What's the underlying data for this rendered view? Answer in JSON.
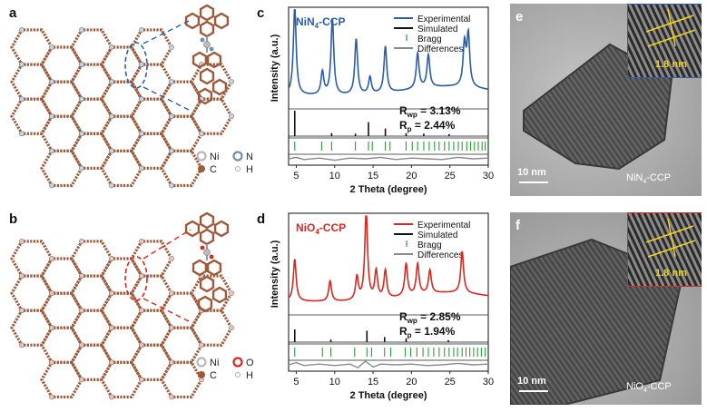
{
  "colors": {
    "ni4_title": "#2f5fa6",
    "ni4_exp": "#2a5ca8",
    "no4_title": "#d8281f",
    "no4_exp": "#d8281f",
    "simulated": "#111111",
    "bragg": "#2e9a3a",
    "difference": "#8a8a8a",
    "atom_c": "#9c5a3a",
    "atom_ni": "#b8b8b8",
    "atom_n": "#6f8fb0",
    "atom_o": "#d8281f",
    "scale_text": "#ffffff",
    "lattice_line": "#f2d21b"
  },
  "panels": {
    "a": {
      "label": "a",
      "legend": [
        {
          "symbol": "Ni",
          "color": "#b8b8b8",
          "style": "ring"
        },
        {
          "symbol": "N",
          "color": "#6f8fb0",
          "style": "ring"
        },
        {
          "symbol": "C",
          "color": "#9c5a3a",
          "style": "dot"
        },
        {
          "symbol": "H",
          "color": "#d9d9d9",
          "style": "small"
        }
      ]
    },
    "b": {
      "label": "b",
      "legend": [
        {
          "symbol": "Ni",
          "color": "#b8b8b8",
          "style": "ring"
        },
        {
          "symbol": "O",
          "color": "#d8281f",
          "style": "ring"
        },
        {
          "symbol": "C",
          "color": "#9c5a3a",
          "style": "dot"
        },
        {
          "symbol": "H",
          "color": "#d9d9d9",
          "style": "small"
        }
      ]
    },
    "c": {
      "label": "c"
    },
    "d": {
      "label": "d"
    },
    "e": {
      "label": "e",
      "scale_bar": "10 nm",
      "sample": "NiN4-CCP",
      "sample_main": "NiN",
      "sample_sub": "4",
      "sample_tail": "-CCP",
      "inset_spacing": "1.8 nm"
    },
    "f": {
      "label": "f",
      "scale_bar": "10 nm",
      "sample": "NiO4-CCP",
      "sample_main": "NiO",
      "sample_sub": "4",
      "sample_tail": "-CCP",
      "inset_spacing": "1.8 nm"
    }
  },
  "chart_data": [
    {
      "panel": "c",
      "type": "line",
      "title": "NiN4-CCP",
      "title_main": "NiN",
      "title_sub": "4",
      "title_tail": "-CCP",
      "xlabel": "2 Theta (degree)",
      "ylabel": "Intensity (a.u.)",
      "xlim": [
        4,
        30
      ],
      "xticks": [
        5,
        10,
        15,
        20,
        25,
        30
      ],
      "legend": [
        "Experimental",
        "Simulated",
        "Bragg",
        "Differences"
      ],
      "legend_marks": [
        "line",
        "line",
        "tick",
        "line"
      ],
      "legend_colors": [
        "#2a5ca8",
        "#111111",
        "#2e9a3a",
        "#8a8a8a"
      ],
      "stats": [
        {
          "main": "R",
          "sub": "wp",
          "value": " = 3.13%"
        },
        {
          "main": "R",
          "sub": "p",
          "value": " = 2.44%"
        }
      ],
      "experimental": {
        "name": "Experimental",
        "peaks": [
          [
            4.8,
            0.95
          ],
          [
            8.4,
            0.25
          ],
          [
            9.7,
            0.82
          ],
          [
            12.8,
            0.6
          ],
          [
            14.6,
            0.18
          ],
          [
            16.6,
            0.5
          ],
          [
            20.8,
            0.38
          ],
          [
            22.2,
            0.35
          ],
          [
            26.9,
            0.45
          ],
          [
            27.4,
            0.55
          ]
        ],
        "x": [
          4.0,
          5.0,
          6.0,
          7.0,
          8.0,
          9.0,
          10.0,
          11.0,
          12.0,
          13.0,
          14.0,
          15.0,
          16.0,
          17.0,
          18.0,
          19.0,
          20.0,
          21.0,
          22.0,
          23.0,
          24.0,
          25.0,
          26.0,
          27.0,
          28.0,
          29.0,
          30.0
        ],
        "y": [
          0.18,
          0.96,
          0.2,
          0.1,
          0.14,
          0.37,
          0.63,
          0.12,
          0.31,
          0.44,
          0.13,
          0.13,
          0.25,
          0.27,
          0.12,
          0.14,
          0.25,
          0.41,
          0.31,
          0.32,
          0.36,
          0.41,
          0.47,
          0.75,
          0.7,
          0.39,
          0.32
        ]
      },
      "simulated_peaks": [
        [
          4.8,
          1.0
        ],
        [
          9.6,
          0.12
        ],
        [
          12.7,
          0.1
        ],
        [
          14.4,
          0.55
        ],
        [
          16.6,
          0.3
        ],
        [
          19.3,
          0.12
        ],
        [
          21.6,
          0.1
        ],
        [
          24.9,
          0.08
        ]
      ],
      "bragg_positions": [
        4.8,
        8.3,
        9.6,
        12.7,
        14.4,
        14.9,
        16.6,
        17.2,
        19.3,
        20.1,
        20.8,
        21.6,
        22.3,
        23.0,
        23.6,
        24.3,
        24.9,
        25.5,
        26.1,
        26.6,
        27.2,
        27.7,
        28.2,
        28.7,
        29.2,
        29.6
      ],
      "differences": {
        "name": "Differences",
        "x": [
          4,
          5,
          6,
          8,
          10,
          12,
          14,
          16,
          18,
          20,
          22,
          24,
          26,
          28,
          30
        ],
        "y": [
          0,
          0.02,
          -0.01,
          0.01,
          -0.02,
          0.01,
          0,
          0.02,
          -0.01,
          0.01,
          0,
          -0.01,
          0.02,
          0,
          0.01
        ]
      }
    },
    {
      "panel": "d",
      "type": "line",
      "title": "NiO4-CCP",
      "title_main": "NiO",
      "title_sub": "4",
      "title_tail": "-CCP",
      "xlabel": "2 Theta (degree)",
      "ylabel": "Intensity (a.u.)",
      "xlim": [
        4,
        30
      ],
      "xticks": [
        5,
        10,
        15,
        20,
        25,
        30
      ],
      "legend": [
        "Experimental",
        "Simulated",
        "Bragg",
        "Differences"
      ],
      "legend_marks": [
        "line",
        "line",
        "tick",
        "line"
      ],
      "legend_colors": [
        "#d8281f",
        "#111111",
        "#2e9a3a",
        "#8a8a8a"
      ],
      "stats": [
        {
          "main": "R",
          "sub": "wp",
          "value": " = 2.85%"
        },
        {
          "main": "R",
          "sub": "p",
          "value": " = 1.94%"
        }
      ],
      "experimental": {
        "name": "Experimental",
        "peaks": [
          [
            4.8,
            0.45
          ],
          [
            9.4,
            0.22
          ],
          [
            12.9,
            0.25
          ],
          [
            14.1,
            0.95
          ],
          [
            15.4,
            0.3
          ],
          [
            16.6,
            0.3
          ],
          [
            19.3,
            0.35
          ],
          [
            20.8,
            0.33
          ],
          [
            22.4,
            0.25
          ],
          [
            26.6,
            0.45
          ]
        ],
        "x": [
          4.0,
          5.0,
          6.0,
          7.0,
          8.0,
          9.0,
          10.0,
          11.0,
          12.0,
          13.0,
          14.0,
          15.0,
          16.0,
          17.0,
          18.0,
          19.0,
          20.0,
          21.0,
          22.0,
          23.0,
          24.0,
          25.0,
          26.0,
          27.0,
          28.0,
          29.0,
          30.0
        ],
        "y": [
          0.15,
          0.4,
          0.11,
          0.09,
          0.12,
          0.19,
          0.14,
          0.18,
          0.26,
          0.39,
          0.94,
          0.44,
          0.37,
          0.23,
          0.17,
          0.41,
          0.24,
          0.38,
          0.24,
          0.31,
          0.21,
          0.27,
          0.43,
          0.47,
          0.22,
          0.12,
          0.1
        ]
      },
      "simulated_peaks": [
        [
          4.8,
          0.5
        ],
        [
          9.5,
          0.1
        ],
        [
          14.2,
          0.45
        ],
        [
          16.5,
          0.2
        ],
        [
          19.3,
          0.15
        ],
        [
          24.8,
          0.08
        ]
      ],
      "bragg_positions": [
        4.8,
        8.4,
        9.5,
        12.6,
        14.2,
        14.8,
        16.5,
        17.3,
        19.2,
        19.9,
        20.7,
        21.5,
        22.2,
        22.9,
        23.6,
        24.3,
        24.9,
        25.5,
        26.0,
        26.6,
        27.1,
        27.6,
        28.1,
        28.6,
        29.1,
        29.6
      ],
      "differences": {
        "name": "Differences",
        "x": [
          4,
          5,
          6,
          8,
          10,
          12,
          13,
          14,
          15,
          16,
          18,
          20,
          22,
          24,
          26,
          28,
          30
        ],
        "y": [
          0,
          0.03,
          -0.01,
          0.01,
          -0.01,
          0.01,
          -0.04,
          0.05,
          -0.03,
          0.01,
          0,
          0.01,
          -0.01,
          0,
          0.02,
          0,
          0.01
        ]
      }
    }
  ]
}
